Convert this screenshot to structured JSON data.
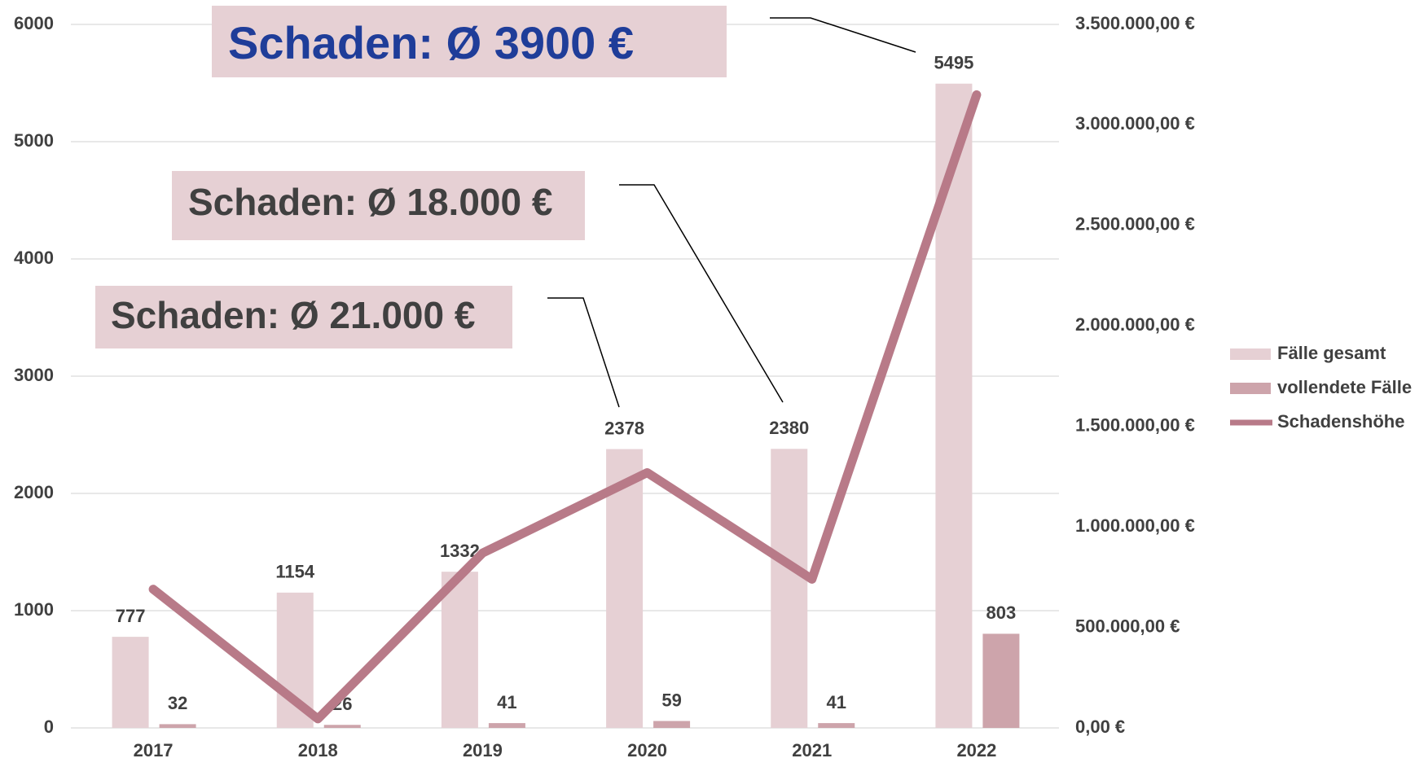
{
  "chart_data": {
    "type": "bar-line",
    "categories": [
      "2017",
      "2018",
      "2019",
      "2020",
      "2021",
      "2022"
    ],
    "series": [
      {
        "name": "Fälle gesamt",
        "color": "#e6d0d4",
        "type": "bar",
        "values": [
          777,
          1154,
          1332,
          2378,
          2380,
          5495
        ]
      },
      {
        "name": "vollendete Fälle",
        "color": "#cda4ab",
        "type": "bar",
        "values": [
          32,
          26,
          41,
          59,
          41,
          803
        ]
      },
      {
        "name": "Schadenshöhe",
        "color": "#b87a88",
        "type": "line",
        "axis": "y2",
        "values": [
          690000,
          45000,
          870000,
          1270000,
          740000,
          3150000
        ]
      }
    ],
    "ylim": [
      0,
      6000
    ],
    "yticks": [
      0,
      1000,
      2000,
      3000,
      4000,
      5000,
      6000
    ],
    "y2lim": [
      0,
      3500000
    ],
    "y2ticks": [
      {
        "value": 0,
        "label": "0,00 €"
      },
      {
        "value": 500000,
        "label": "500.000,00 €"
      },
      {
        "value": 1000000,
        "label": "1.000.000,00 €"
      },
      {
        "value": 1500000,
        "label": "1.500.000,00 €"
      },
      {
        "value": 2000000,
        "label": "2.000.000,00 €"
      },
      {
        "value": 2500000,
        "label": "2.500.000,00 €"
      },
      {
        "value": 3000000,
        "label": "3.000.000,00 €"
      },
      {
        "value": 3500000,
        "label": "3.500.000,00 €"
      }
    ],
    "grid": true,
    "legend": "right",
    "annotations": [
      "Schaden: Ø 3900 €",
      "Schaden: Ø 18.000 €",
      "Schaden: Ø 21.000 €"
    ]
  }
}
